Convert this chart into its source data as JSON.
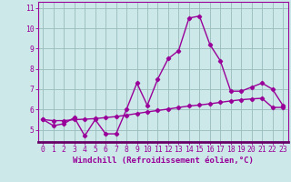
{
  "xlabel": "Windchill (Refroidissement éolien,°C)",
  "background_color": "#cce8e8",
  "line_color": "#990099",
  "grid_color": "#99bbbb",
  "axis_bar_color": "#660066",
  "x_values": [
    0,
    1,
    2,
    3,
    4,
    5,
    6,
    7,
    8,
    9,
    10,
    11,
    12,
    13,
    14,
    15,
    16,
    17,
    18,
    19,
    20,
    21,
    22,
    23
  ],
  "y_curve1": [
    5.5,
    5.2,
    5.3,
    5.6,
    4.7,
    5.5,
    4.8,
    4.8,
    6.0,
    7.3,
    6.2,
    7.5,
    8.5,
    8.9,
    10.5,
    10.6,
    9.2,
    8.4,
    6.9,
    6.9,
    7.1,
    7.3,
    7.0,
    6.2
  ],
  "y_line": [
    5.5,
    5.45,
    5.45,
    5.5,
    5.52,
    5.55,
    5.6,
    5.65,
    5.72,
    5.8,
    5.88,
    5.95,
    6.02,
    6.1,
    6.17,
    6.22,
    6.28,
    6.35,
    6.42,
    6.48,
    6.52,
    6.55,
    6.1,
    6.1
  ],
  "ylim": [
    4.4,
    11.3
  ],
  "xlim": [
    -0.5,
    23.5
  ],
  "xticks": [
    0,
    1,
    2,
    3,
    4,
    5,
    6,
    7,
    8,
    9,
    10,
    11,
    12,
    13,
    14,
    15,
    16,
    17,
    18,
    19,
    20,
    21,
    22,
    23
  ],
  "yticks": [
    5,
    6,
    7,
    8,
    9,
    10,
    11
  ],
  "marker": "D",
  "marker_size": 2.2,
  "line_width": 1.0,
  "xlabel_fontsize": 6.5,
  "tick_fontsize": 5.8
}
